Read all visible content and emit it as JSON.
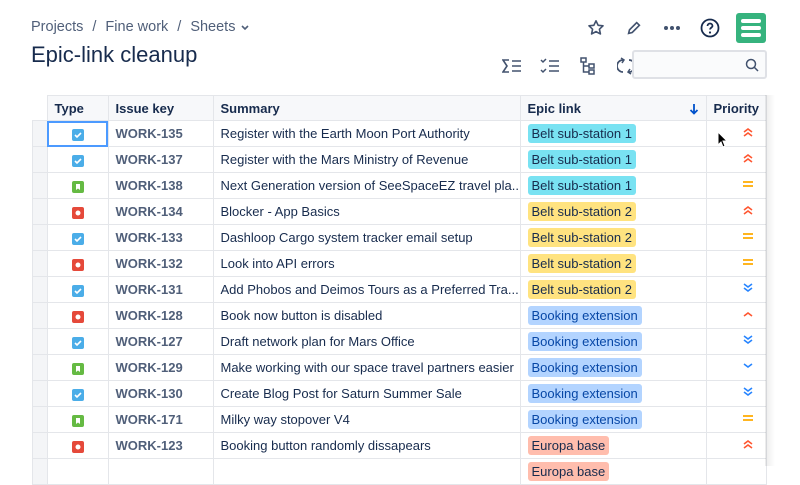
{
  "breadcrumb": {
    "items": [
      "Projects",
      "Fine work",
      "Sheets"
    ],
    "separator": "/"
  },
  "page_title": "Epic-link cleanup",
  "search": {
    "placeholder": "",
    "value": ""
  },
  "colors": {
    "accent": "#0052cc",
    "logo": "#36b37e",
    "task": "#4bade8",
    "story": "#65ba43",
    "bug": "#e5493a",
    "highest": "#ff5630",
    "medium": "#ffab00",
    "low": "#2684ff"
  },
  "epic_colors": {
    "Belt sub-station 1": "#79e2f2",
    "Belt sub-station 2": "#ffe380",
    "Booking extension": "#b3d4ff",
    "Europa base": "#ffbdad"
  },
  "table": {
    "columns": [
      "Type",
      "Issue key",
      "Summary",
      "Epic link",
      "Priority"
    ],
    "sort": {
      "column": "Epic link",
      "direction": "descending"
    },
    "rows": [
      {
        "type": "task",
        "key": "WORK-135",
        "summary": "Register with the Earth Moon Port Authority",
        "epic": "Belt sub-station 1",
        "priority": "highest"
      },
      {
        "type": "task",
        "key": "WORK-137",
        "summary": "Register with the Mars Ministry of Revenue",
        "epic": "Belt sub-station 1",
        "priority": "highest"
      },
      {
        "type": "story",
        "key": "WORK-138",
        "summary": "Next Generation version of SeeSpaceEZ travel pla...",
        "epic": "Belt sub-station 1",
        "priority": "medium"
      },
      {
        "type": "bug",
        "key": "WORK-134",
        "summary": "Blocker - App Basics",
        "epic": "Belt sub-station 2",
        "priority": "highest"
      },
      {
        "type": "task",
        "key": "WORK-133",
        "summary": "Dashloop Cargo system tracker email setup",
        "epic": "Belt sub-station 2",
        "priority": "medium"
      },
      {
        "type": "bug",
        "key": "WORK-132",
        "summary": "Look into API errors",
        "epic": "Belt sub-station 2",
        "priority": "medium"
      },
      {
        "type": "task",
        "key": "WORK-131",
        "summary": "Add Phobos and Deimos Tours as a Preferred Tra...",
        "epic": "Belt sub-station 2",
        "priority": "lowest"
      },
      {
        "type": "bug",
        "key": "WORK-128",
        "summary": "Book now button is disabled",
        "epic": "Booking extension",
        "priority": "high"
      },
      {
        "type": "task",
        "key": "WORK-127",
        "summary": "Draft network plan for Mars Office",
        "epic": "Booking extension",
        "priority": "lowest"
      },
      {
        "type": "story",
        "key": "WORK-129",
        "summary": "Make working with our space travel partners easier",
        "epic": "Booking extension",
        "priority": "low"
      },
      {
        "type": "task",
        "key": "WORK-130",
        "summary": "Create Blog Post for Saturn Summer Sale",
        "epic": "Booking extension",
        "priority": "lowest"
      },
      {
        "type": "story",
        "key": "WORK-171",
        "summary": "Milky way stopover V4",
        "epic": "Booking extension",
        "priority": "medium"
      },
      {
        "type": "bug",
        "key": "WORK-123",
        "summary": "Booking button randomly dissapears",
        "epic": "Europa base",
        "priority": "highest"
      },
      {
        "type": "",
        "key": "",
        "summary": "",
        "epic": "Europa base",
        "priority": ""
      }
    ]
  }
}
